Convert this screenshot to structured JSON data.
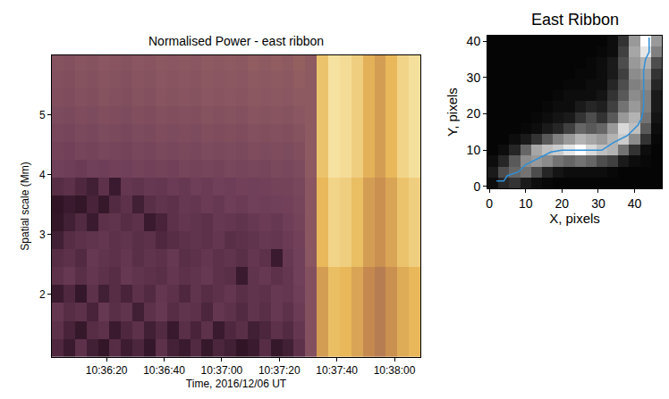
{
  "chart_data": [
    {
      "type": "heatmap",
      "title": "Normalised Power - east ribbon",
      "x_label": "Time, 2016/12/06 UT",
      "y_label": "Spatial scale (Mm)",
      "x": [
        "2016-12-06 10:36:03",
        "2016-12-06 10:36:07",
        "2016-12-06 10:36:11",
        "2016-12-06 10:36:15",
        "2016-12-06 10:36:19",
        "2016-12-06 10:36:23",
        "2016-12-06 10:36:27",
        "2016-12-06 10:36:31",
        "2016-12-06 10:36:35",
        "2016-12-06 10:36:39",
        "2016-12-06 10:36:43",
        "2016-12-06 10:36:47",
        "2016-12-06 10:36:51",
        "2016-12-06 10:36:55",
        "2016-12-06 10:36:59",
        "2016-12-06 10:37:03",
        "2016-12-06 10:37:07",
        "2016-12-06 10:37:11",
        "2016-12-06 10:37:15",
        "2016-12-06 10:37:19",
        "2016-12-06 10:37:23",
        "2016-12-06 10:37:27",
        "2016-12-06 10:37:31",
        "2016-12-06 10:37:35",
        "2016-12-06 10:37:39",
        "2016-12-06 10:37:43",
        "2016-12-06 10:37:47",
        "2016-12-06 10:37:51",
        "2016-12-06 10:37:55",
        "2016-12-06 10:37:59",
        "2016-12-06 10:38:03",
        "2016-12-06 10:38:07"
      ],
      "y": [
        1.1,
        1.4,
        1.7,
        2.0,
        2.3,
        2.6,
        2.9,
        3.2,
        3.5,
        3.8,
        4.1,
        4.4,
        4.7,
        5.0,
        5.3,
        5.6,
        5.9
      ],
      "z": [
        [
          0.26,
          0.2,
          0.3,
          0.22,
          0.16,
          0.28,
          0.21,
          0.25,
          0.17,
          0.3,
          0.23,
          0.2,
          0.27,
          0.18,
          0.25,
          0.22,
          0.15,
          0.2,
          0.28,
          0.18,
          0.22,
          0.3,
          0.45,
          0.72,
          0.82,
          0.8,
          0.74,
          0.66,
          0.62,
          0.68,
          0.76,
          0.8
        ],
        [
          0.3,
          0.24,
          0.18,
          0.28,
          0.3,
          0.2,
          0.26,
          0.3,
          0.22,
          0.27,
          0.19,
          0.29,
          0.24,
          0.3,
          0.2,
          0.26,
          0.29,
          0.22,
          0.25,
          0.3,
          0.27,
          0.32,
          0.45,
          0.72,
          0.82,
          0.8,
          0.74,
          0.66,
          0.62,
          0.68,
          0.76,
          0.8
        ],
        [
          0.32,
          0.28,
          0.3,
          0.24,
          0.33,
          0.29,
          0.31,
          0.22,
          0.3,
          0.33,
          0.28,
          0.31,
          0.3,
          0.25,
          0.32,
          0.3,
          0.27,
          0.31,
          0.29,
          0.33,
          0.3,
          0.34,
          0.45,
          0.72,
          0.82,
          0.8,
          0.74,
          0.66,
          0.62,
          0.68,
          0.76,
          0.8
        ],
        [
          0.2,
          0.26,
          0.17,
          0.3,
          0.22,
          0.28,
          0.24,
          0.3,
          0.27,
          0.32,
          0.3,
          0.26,
          0.31,
          0.28,
          0.3,
          0.32,
          0.29,
          0.31,
          0.3,
          0.33,
          0.32,
          0.35,
          0.45,
          0.72,
          0.82,
          0.8,
          0.74,
          0.66,
          0.62,
          0.68,
          0.76,
          0.8
        ],
        [
          0.3,
          0.33,
          0.29,
          0.32,
          0.3,
          0.28,
          0.33,
          0.31,
          0.3,
          0.29,
          0.32,
          0.3,
          0.31,
          0.33,
          0.3,
          0.29,
          0.2,
          0.31,
          0.33,
          0.3,
          0.32,
          0.36,
          0.45,
          0.72,
          0.82,
          0.8,
          0.74,
          0.66,
          0.62,
          0.68,
          0.76,
          0.8
        ],
        [
          0.28,
          0.3,
          0.27,
          0.33,
          0.31,
          0.3,
          0.32,
          0.29,
          0.31,
          0.3,
          0.33,
          0.29,
          0.3,
          0.32,
          0.3,
          0.31,
          0.29,
          0.32,
          0.3,
          0.2,
          0.33,
          0.36,
          0.48,
          0.8,
          0.9,
          0.88,
          0.82,
          0.72,
          0.68,
          0.74,
          0.84,
          0.88
        ],
        [
          0.22,
          0.28,
          0.3,
          0.31,
          0.32,
          0.3,
          0.31,
          0.29,
          0.3,
          0.26,
          0.28,
          0.3,
          0.31,
          0.3,
          0.32,
          0.29,
          0.3,
          0.31,
          0.33,
          0.32,
          0.34,
          0.37,
          0.48,
          0.8,
          0.9,
          0.88,
          0.82,
          0.72,
          0.68,
          0.74,
          0.84,
          0.88
        ],
        [
          0.16,
          0.22,
          0.27,
          0.2,
          0.3,
          0.31,
          0.28,
          0.3,
          0.2,
          0.24,
          0.3,
          0.32,
          0.31,
          0.3,
          0.33,
          0.32,
          0.31,
          0.33,
          0.34,
          0.33,
          0.35,
          0.38,
          0.48,
          0.8,
          0.9,
          0.88,
          0.82,
          0.72,
          0.68,
          0.74,
          0.84,
          0.88
        ],
        [
          0.15,
          0.2,
          0.16,
          0.24,
          0.18,
          0.27,
          0.3,
          0.22,
          0.29,
          0.31,
          0.3,
          0.33,
          0.32,
          0.34,
          0.33,
          0.35,
          0.34,
          0.36,
          0.35,
          0.36,
          0.37,
          0.39,
          0.48,
          0.8,
          0.9,
          0.88,
          0.82,
          0.72,
          0.68,
          0.74,
          0.84,
          0.88
        ],
        [
          0.28,
          0.3,
          0.26,
          0.22,
          0.3,
          0.2,
          0.32,
          0.31,
          0.33,
          0.32,
          0.34,
          0.33,
          0.35,
          0.34,
          0.36,
          0.35,
          0.37,
          0.36,
          0.37,
          0.38,
          0.38,
          0.4,
          0.48,
          0.8,
          0.9,
          0.88,
          0.82,
          0.72,
          0.68,
          0.74,
          0.84,
          0.88
        ],
        [
          0.36,
          0.35,
          0.34,
          0.36,
          0.35,
          0.37,
          0.36,
          0.38,
          0.37,
          0.38,
          0.37,
          0.39,
          0.38,
          0.39,
          0.38,
          0.4,
          0.39,
          0.4,
          0.39,
          0.41,
          0.4,
          0.42,
          0.5,
          0.84,
          0.95,
          0.93,
          0.88,
          0.78,
          0.72,
          0.8,
          0.9,
          0.94
        ],
        [
          0.38,
          0.37,
          0.39,
          0.38,
          0.4,
          0.39,
          0.38,
          0.4,
          0.39,
          0.41,
          0.4,
          0.41,
          0.4,
          0.42,
          0.41,
          0.42,
          0.41,
          0.43,
          0.42,
          0.43,
          0.42,
          0.44,
          0.5,
          0.84,
          0.95,
          0.93,
          0.88,
          0.78,
          0.72,
          0.8,
          0.9,
          0.94
        ],
        [
          0.4,
          0.39,
          0.41,
          0.4,
          0.42,
          0.41,
          0.4,
          0.42,
          0.41,
          0.43,
          0.42,
          0.43,
          0.42,
          0.44,
          0.43,
          0.44,
          0.43,
          0.45,
          0.44,
          0.45,
          0.44,
          0.46,
          0.5,
          0.84,
          0.95,
          0.93,
          0.88,
          0.78,
          0.72,
          0.8,
          0.9,
          0.94
        ],
        [
          0.42,
          0.41,
          0.43,
          0.42,
          0.44,
          0.43,
          0.42,
          0.44,
          0.43,
          0.45,
          0.44,
          0.45,
          0.44,
          0.46,
          0.45,
          0.46,
          0.45,
          0.47,
          0.46,
          0.47,
          0.46,
          0.48,
          0.5,
          0.84,
          0.95,
          0.93,
          0.88,
          0.78,
          0.72,
          0.8,
          0.9,
          0.94
        ],
        [
          0.44,
          0.43,
          0.45,
          0.44,
          0.46,
          0.45,
          0.44,
          0.46,
          0.45,
          0.47,
          0.46,
          0.47,
          0.46,
          0.48,
          0.47,
          0.48,
          0.47,
          0.49,
          0.48,
          0.49,
          0.48,
          0.5,
          0.5,
          0.84,
          0.95,
          0.93,
          0.88,
          0.78,
          0.72,
          0.8,
          0.9,
          0.94
        ],
        [
          0.45,
          0.44,
          0.46,
          0.45,
          0.47,
          0.46,
          0.45,
          0.47,
          0.46,
          0.48,
          0.47,
          0.48,
          0.47,
          0.49,
          0.48,
          0.49,
          0.48,
          0.5,
          0.49,
          0.5,
          0.49,
          0.51,
          0.5,
          0.84,
          0.95,
          0.93,
          0.88,
          0.78,
          0.72,
          0.8,
          0.9,
          0.94
        ],
        [
          0.46,
          0.45,
          0.47,
          0.46,
          0.48,
          0.47,
          0.46,
          0.48,
          0.47,
          0.49,
          0.48,
          0.49,
          0.48,
          0.5,
          0.49,
          0.5,
          0.49,
          0.51,
          0.5,
          0.51,
          0.5,
          0.52,
          0.5,
          0.84,
          0.95,
          0.93,
          0.88,
          0.78,
          0.72,
          0.8,
          0.9,
          0.94
        ]
      ],
      "zlim": [
        0,
        1
      ],
      "xlim": [
        "2016-12-06 10:36:01",
        "2016-12-06 10:38:09"
      ],
      "xticks": [
        {
          "value": "2016-12-06 10:36:20",
          "label": "10:36:20"
        },
        {
          "value": "2016-12-06 10:36:40",
          "label": "10:36:40"
        },
        {
          "value": "2016-12-06 10:37:00",
          "label": "10:37:00"
        },
        {
          "value": "2016-12-06 10:37:20",
          "label": "10:37:20"
        },
        {
          "value": "2016-12-06 10:37:40",
          "label": "10:37:40"
        },
        {
          "value": "2016-12-06 10:38:00",
          "label": "10:38:00"
        }
      ],
      "ylim": [
        0.95,
        6.0
      ],
      "yticks": [
        2,
        3,
        4,
        5
      ]
    },
    {
      "type": "image",
      "title": "East Ribbon",
      "x_label": "X, pixels",
      "y_label": "Y, pixels",
      "x": [
        1,
        4,
        7,
        10,
        13,
        16,
        19,
        22,
        25,
        28,
        31,
        34,
        37,
        40,
        43,
        46
      ],
      "y": [
        1,
        4,
        7,
        10,
        13,
        16,
        19,
        22,
        25,
        28,
        31,
        34,
        37,
        40
      ],
      "z": [
        [
          0.05,
          0.15,
          0.2,
          0.1,
          0.05,
          0.03,
          0.02,
          0.02,
          0.02,
          0.02,
          0.02,
          0.02,
          0.02,
          0.02,
          0.02,
          0.02
        ],
        [
          0.1,
          0.3,
          0.4,
          0.45,
          0.3,
          0.15,
          0.08,
          0.05,
          0.05,
          0.05,
          0.05,
          0.03,
          0.02,
          0.02,
          0.02,
          0.02
        ],
        [
          0.05,
          0.15,
          0.35,
          0.55,
          0.6,
          0.55,
          0.45,
          0.4,
          0.45,
          0.4,
          0.3,
          0.25,
          0.1,
          0.05,
          0.03,
          0.02
        ],
        [
          0.02,
          0.05,
          0.15,
          0.4,
          0.65,
          0.75,
          0.8,
          0.9,
          1.0,
          0.85,
          0.75,
          0.7,
          0.45,
          0.2,
          0.05,
          0.02
        ],
        [
          0.02,
          0.02,
          0.05,
          0.1,
          0.2,
          0.35,
          0.5,
          0.6,
          0.7,
          0.65,
          0.6,
          0.7,
          0.8,
          0.55,
          0.2,
          0.03
        ],
        [
          0.02,
          0.02,
          0.02,
          0.03,
          0.05,
          0.1,
          0.15,
          0.25,
          0.4,
          0.35,
          0.4,
          0.6,
          0.85,
          0.75,
          0.35,
          0.05
        ],
        [
          0.02,
          0.02,
          0.02,
          0.02,
          0.03,
          0.05,
          0.08,
          0.1,
          0.2,
          0.3,
          0.2,
          0.35,
          0.6,
          0.7,
          0.45,
          0.08
        ],
        [
          0.02,
          0.02,
          0.02,
          0.02,
          0.02,
          0.03,
          0.05,
          0.05,
          0.1,
          0.15,
          0.12,
          0.25,
          0.45,
          0.6,
          0.5,
          0.1
        ],
        [
          0.02,
          0.02,
          0.02,
          0.02,
          0.02,
          0.02,
          0.03,
          0.05,
          0.05,
          0.05,
          0.08,
          0.2,
          0.35,
          0.55,
          0.5,
          0.1
        ],
        [
          0.02,
          0.02,
          0.02,
          0.02,
          0.02,
          0.02,
          0.02,
          0.03,
          0.03,
          0.05,
          0.05,
          0.15,
          0.3,
          0.5,
          0.55,
          0.15
        ],
        [
          0.02,
          0.02,
          0.02,
          0.02,
          0.02,
          0.02,
          0.02,
          0.02,
          0.03,
          0.03,
          0.05,
          0.1,
          0.25,
          0.55,
          0.6,
          0.2
        ],
        [
          0.02,
          0.02,
          0.02,
          0.02,
          0.02,
          0.02,
          0.02,
          0.02,
          0.02,
          0.03,
          0.05,
          0.1,
          0.3,
          0.6,
          0.7,
          0.3
        ],
        [
          0.02,
          0.02,
          0.02,
          0.02,
          0.02,
          0.02,
          0.02,
          0.02,
          0.02,
          0.02,
          0.03,
          0.05,
          0.25,
          0.65,
          0.9,
          0.5
        ],
        [
          0.02,
          0.02,
          0.02,
          0.02,
          0.02,
          0.02,
          0.02,
          0.02,
          0.02,
          0.02,
          0.02,
          0.05,
          0.2,
          0.6,
          1.0,
          0.6
        ]
      ],
      "zlim": [
        0,
        1
      ],
      "xlim": [
        -0.5,
        47.5
      ],
      "xticks": [
        0,
        10,
        20,
        30,
        40
      ],
      "ylim": [
        -0.5,
        41.5
      ],
      "yticks": [
        0,
        10,
        20,
        30,
        40
      ],
      "series": [
        {
          "type": "line",
          "color": "#2f8fd8",
          "x": [
            2,
            4,
            5,
            8,
            10,
            14,
            17,
            20,
            31,
            34,
            38,
            41,
            42,
            42.5,
            42.5,
            43,
            44,
            44
          ],
          "y": [
            1.5,
            1.5,
            3,
            4,
            6,
            8,
            9.5,
            10,
            10,
            12,
            14,
            17,
            19,
            22,
            32,
            35,
            37,
            41
          ]
        }
      ]
    }
  ]
}
